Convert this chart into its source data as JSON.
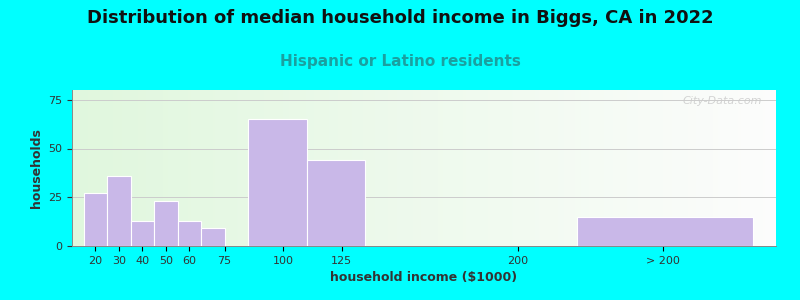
{
  "title": "Distribution of median household income in Biggs, CA in 2022",
  "subtitle": "Hispanic or Latino residents",
  "xlabel": "household income ($1000)",
  "ylabel": "households",
  "bar_color": "#c9b8e8",
  "bar_edgecolor": "#ffffff",
  "background_outer": "#00ffff",
  "yticks": [
    0,
    25,
    50,
    75
  ],
  "ylim": [
    0,
    80
  ],
  "watermark": "City-Data.com",
  "categories": [
    "20",
    "30",
    "40",
    "50",
    "60",
    "75",
    "100",
    "125",
    "200",
    "> 200"
  ],
  "values": [
    27,
    36,
    13,
    23,
    13,
    9,
    65,
    44,
    0,
    15
  ],
  "bar_lefts": [
    15,
    25,
    35,
    45,
    55,
    65,
    85,
    110,
    170,
    225
  ],
  "bar_widths": [
    10,
    10,
    10,
    10,
    10,
    10,
    25,
    25,
    10,
    75
  ],
  "xtick_pos": [
    20,
    30,
    40,
    50,
    60,
    75,
    100,
    125,
    200,
    262
  ],
  "xtick_labels": [
    "20",
    "30",
    "40",
    "50",
    "60",
    "75",
    "100",
    "125",
    "200",
    "> 200"
  ],
  "xlim": [
    10,
    310
  ],
  "title_fontsize": 13,
  "subtitle_fontsize": 11,
  "subtitle_color": "#1aa0a0",
  "axis_label_fontsize": 9,
  "tick_fontsize": 8
}
